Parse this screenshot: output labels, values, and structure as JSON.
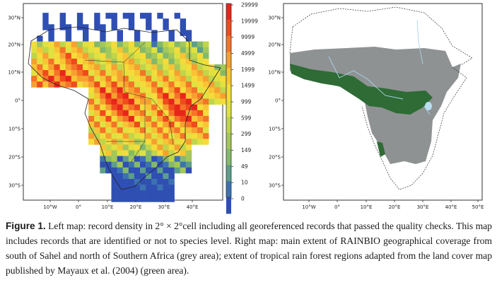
{
  "left_map": {
    "lat_ticks": [
      "30°N",
      "20°N",
      "10°N",
      "0°",
      "10°S",
      "20°S",
      "30°S"
    ],
    "lon_ticks": [
      "10°W",
      "0°",
      "10°E",
      "20°E",
      "30°E",
      "40°E"
    ],
    "legend": {
      "labels": [
        "29999",
        "19999",
        "9999",
        "4999",
        "1999",
        "1499",
        "999",
        "599",
        "299",
        "149",
        "49",
        "10",
        "0"
      ],
      "colors": [
        "#e8251b",
        "#f04a1d",
        "#f47428",
        "#f7a030",
        "#f8c435",
        "#f4dc3a",
        "#dfe141",
        "#bfd54a",
        "#a3c75a",
        "#84b96b",
        "#5d9e8a",
        "#3d72b0",
        "#2f4fb3"
      ]
    }
  },
  "right_map": {
    "lat_ticks": [
      "30°N",
      "20°N",
      "10°N",
      "0°",
      "10°S",
      "20°S",
      "30°S"
    ],
    "lon_ticks": [
      "10°W",
      "0°",
      "10°E",
      "20°E",
      "30°E",
      "40°E",
      "50°E"
    ],
    "colors": {
      "coverage_grey": "#8f9293",
      "rain_forest_green": "#2e6b35",
      "rivers": "#a9d5ea"
    }
  },
  "caption": {
    "label": "Figure 1.",
    "text": "Left map: record density in 2° × 2°cell including all georeferenced records that passed the quality checks. This map includes records that are identified or not to species level. Right map: main extent of RAINBIO geographical coverage from south of Sahel and north of Southern Africa (grey area); extent of tropical rain forest regions adapted from the land cover map published by Mayaux et al. (2004) (green area)."
  }
}
